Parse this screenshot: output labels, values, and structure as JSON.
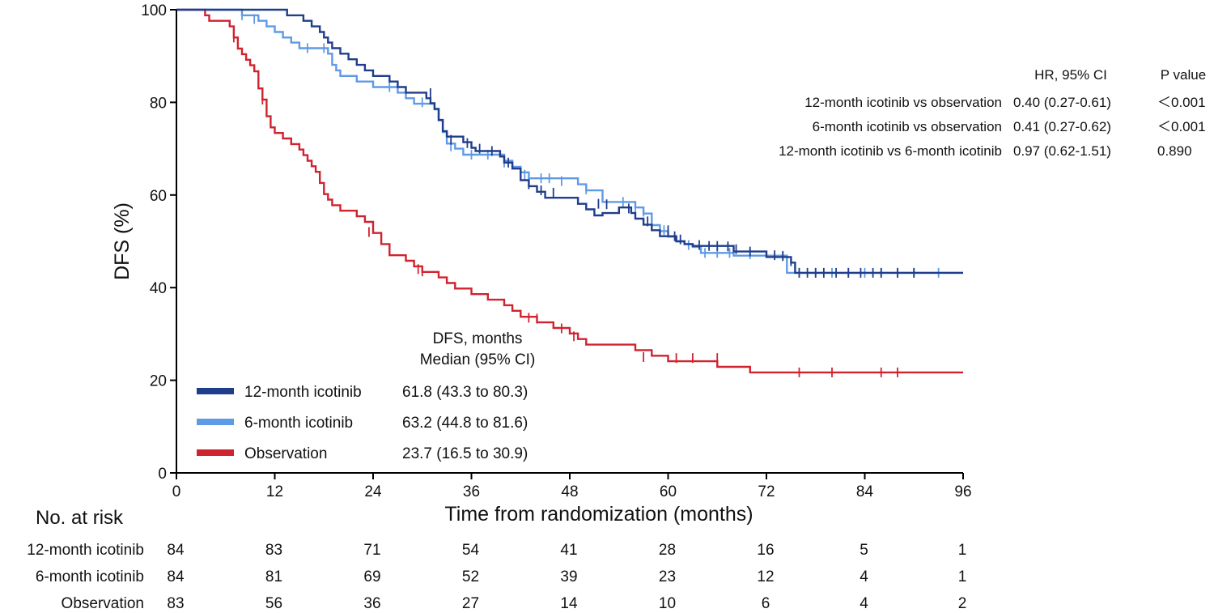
{
  "chart_data": {
    "type": "line",
    "subtype": "kaplan-meier",
    "title": "",
    "xlabel": "Time from randomization (months)",
    "ylabel": "DFS (%)",
    "xlim": [
      0,
      96
    ],
    "ylim": [
      0,
      100
    ],
    "xticks": [
      0,
      12,
      24,
      36,
      48,
      60,
      72,
      84,
      96
    ],
    "yticks": [
      0,
      20,
      40,
      60,
      80,
      100
    ],
    "grid": false,
    "legend_position": "lower-left",
    "series": [
      {
        "name": "12-month icotinib",
        "color": "#1f3d8a",
        "median_ci": "61.8 (43.3 to 80.3)",
        "steps": [
          [
            0,
            100
          ],
          [
            3,
            100
          ],
          [
            6,
            100
          ],
          [
            13,
            100
          ],
          [
            13.5,
            98.8
          ],
          [
            15,
            98.8
          ],
          [
            15.5,
            97.6
          ],
          [
            16.5,
            96.4
          ],
          [
            17.5,
            95.2
          ],
          [
            18,
            94
          ],
          [
            18.5,
            92.9
          ],
          [
            19,
            91.7
          ],
          [
            20,
            90.5
          ],
          [
            21,
            89.3
          ],
          [
            22,
            88.1
          ],
          [
            23,
            86.9
          ],
          [
            24,
            85.7
          ],
          [
            26,
            84.5
          ],
          [
            27,
            83.3
          ],
          [
            28,
            82.1
          ],
          [
            30,
            82.1
          ],
          [
            30.5,
            80.9
          ],
          [
            31,
            79.8
          ],
          [
            31.5,
            78.6
          ],
          [
            32,
            76.2
          ],
          [
            32.5,
            73.8
          ],
          [
            33,
            72.6
          ],
          [
            35,
            71.4
          ],
          [
            36,
            70.2
          ],
          [
            36.5,
            69.5
          ],
          [
            38,
            69.5
          ],
          [
            39.5,
            68.3
          ],
          [
            40,
            67
          ],
          [
            41,
            65.7
          ],
          [
            42,
            63.2
          ],
          [
            43,
            61.9
          ],
          [
            44,
            60.7
          ],
          [
            45,
            59.4
          ],
          [
            48,
            59.4
          ],
          [
            49,
            58.1
          ],
          [
            50,
            56.9
          ],
          [
            51,
            55.6
          ],
          [
            52,
            56.1
          ],
          [
            54,
            57.3
          ],
          [
            55,
            57.3
          ],
          [
            55.5,
            56.1
          ],
          [
            56,
            54.9
          ],
          [
            57,
            53.6
          ],
          [
            58,
            52.4
          ],
          [
            59,
            51.1
          ],
          [
            61,
            50
          ],
          [
            62,
            49.4
          ],
          [
            63,
            49
          ],
          [
            67,
            49
          ],
          [
            68,
            47.8
          ],
          [
            71,
            47.8
          ],
          [
            72,
            46.6
          ],
          [
            75,
            45.4
          ],
          [
            75.5,
            43.2
          ],
          [
            96,
            43.2
          ]
        ],
        "censored": [
          [
            31,
            82
          ],
          [
            33.5,
            71.9
          ],
          [
            35.5,
            71.2
          ],
          [
            37,
            70
          ],
          [
            38.5,
            69.5
          ],
          [
            40.5,
            67
          ],
          [
            43,
            62.3
          ],
          [
            44.5,
            61
          ],
          [
            46,
            60.5
          ],
          [
            51.5,
            58.1
          ],
          [
            52.5,
            58
          ],
          [
            55.2,
            57.1
          ],
          [
            57.5,
            54.3
          ],
          [
            60,
            52.4
          ],
          [
            60.8,
            51.1
          ],
          [
            61.5,
            50.4
          ],
          [
            63.8,
            49.2
          ],
          [
            65,
            49
          ],
          [
            66,
            49
          ],
          [
            67.3,
            48.9
          ],
          [
            68.3,
            48.3
          ],
          [
            70,
            47.8
          ],
          [
            73,
            47
          ],
          [
            74,
            46.8
          ],
          [
            75,
            45.7
          ],
          [
            76,
            43.2
          ],
          [
            77,
            43.2
          ],
          [
            78,
            43.2
          ],
          [
            79,
            43.2
          ],
          [
            80.5,
            43.2
          ],
          [
            82,
            43.2
          ],
          [
            83.5,
            43.2
          ],
          [
            85,
            43.2
          ],
          [
            86,
            43.2
          ],
          [
            88,
            43.2
          ],
          [
            90,
            43.2
          ]
        ]
      },
      {
        "name": "6-month icotinib",
        "color": "#5f9ae6",
        "median_ci": "63.2 (44.8 to 81.6)",
        "steps": [
          [
            0,
            100
          ],
          [
            7,
            100
          ],
          [
            8,
            98.8
          ],
          [
            9,
            98.8
          ],
          [
            10,
            97.6
          ],
          [
            11,
            96.4
          ],
          [
            12,
            95.2
          ],
          [
            13,
            94
          ],
          [
            14,
            92.9
          ],
          [
            15,
            91.7
          ],
          [
            18,
            91.7
          ],
          [
            18.5,
            90.5
          ],
          [
            19,
            88.1
          ],
          [
            19.5,
            86.9
          ],
          [
            20,
            85.7
          ],
          [
            22,
            84.5
          ],
          [
            24,
            83.3
          ],
          [
            27,
            82.1
          ],
          [
            28,
            80.9
          ],
          [
            29,
            79.7
          ],
          [
            31,
            79.7
          ],
          [
            31.5,
            78.5
          ],
          [
            32,
            76.1
          ],
          [
            32.5,
            73.6
          ],
          [
            33,
            71.1
          ],
          [
            34,
            70
          ],
          [
            35,
            68.7
          ],
          [
            38,
            68.7
          ],
          [
            40,
            67.4
          ],
          [
            41,
            66.1
          ],
          [
            42,
            64.9
          ],
          [
            43,
            63.6
          ],
          [
            48,
            63.6
          ],
          [
            49,
            62.3
          ],
          [
            50,
            61
          ],
          [
            52,
            58.5
          ],
          [
            55,
            58.5
          ],
          [
            56,
            57.3
          ],
          [
            57,
            56
          ],
          [
            58,
            53.5
          ],
          [
            59,
            52.2
          ],
          [
            60,
            51
          ],
          [
            61,
            50
          ],
          [
            62,
            49.4
          ],
          [
            63,
            48.8
          ],
          [
            64,
            47.5
          ],
          [
            67,
            47.5
          ],
          [
            68,
            46.9
          ],
          [
            74,
            46.9
          ],
          [
            74.5,
            43.2
          ],
          [
            96,
            43.2
          ]
        ],
        "censored": [
          [
            8,
            98.8
          ],
          [
            9.5,
            98
          ],
          [
            16,
            91.7
          ],
          [
            18,
            91.7
          ],
          [
            26,
            83.3
          ],
          [
            30,
            80
          ],
          [
            33.5,
            70.5
          ],
          [
            36,
            68.7
          ],
          [
            38,
            68.7
          ],
          [
            40,
            67
          ],
          [
            42.5,
            64.4
          ],
          [
            44.5,
            63.6
          ],
          [
            45.5,
            63.6
          ],
          [
            47,
            63
          ],
          [
            50,
            61.2
          ],
          [
            54.5,
            58.5
          ],
          [
            56,
            57.2
          ],
          [
            57,
            56.4
          ],
          [
            59.5,
            52.4
          ],
          [
            62.5,
            49.2
          ],
          [
            64.5,
            47.5
          ],
          [
            66,
            47.5
          ],
          [
            67.5,
            47.5
          ],
          [
            70,
            47.2
          ],
          [
            74,
            46.9
          ],
          [
            76,
            43.2
          ],
          [
            78,
            43.2
          ],
          [
            80,
            43.2
          ],
          [
            82,
            43.2
          ],
          [
            84,
            43.2
          ],
          [
            86,
            43.2
          ],
          [
            88,
            43.2
          ],
          [
            90,
            43.2
          ],
          [
            93,
            43.2
          ]
        ]
      },
      {
        "name": "Observation",
        "color": "#d0222f",
        "median_ci": "23.7 (16.5 to 30.9)",
        "steps": [
          [
            0,
            100
          ],
          [
            3,
            100
          ],
          [
            3.5,
            98.8
          ],
          [
            4,
            97.6
          ],
          [
            6,
            97.6
          ],
          [
            6.5,
            96.4
          ],
          [
            7,
            94
          ],
          [
            7.5,
            91.6
          ],
          [
            8,
            90.4
          ],
          [
            8.5,
            89.2
          ],
          [
            9,
            88
          ],
          [
            9.5,
            86.7
          ],
          [
            10,
            83
          ],
          [
            10.5,
            80.6
          ],
          [
            11,
            77
          ],
          [
            11.5,
            74.6
          ],
          [
            12,
            73.4
          ],
          [
            13,
            72.2
          ],
          [
            14,
            71
          ],
          [
            15,
            69.8
          ],
          [
            15.5,
            68.6
          ],
          [
            16,
            67.4
          ],
          [
            16.5,
            66.2
          ],
          [
            17,
            65
          ],
          [
            17.5,
            62.6
          ],
          [
            18,
            60.2
          ],
          [
            18.5,
            59
          ],
          [
            19,
            57.8
          ],
          [
            20,
            56.6
          ],
          [
            22,
            55.4
          ],
          [
            23,
            54.2
          ],
          [
            24,
            51.8
          ],
          [
            25,
            49.4
          ],
          [
            26,
            47
          ],
          [
            28,
            45.8
          ],
          [
            29,
            44.6
          ],
          [
            30,
            43.4
          ],
          [
            32,
            42.2
          ],
          [
            33,
            41
          ],
          [
            34,
            39.8
          ],
          [
            36,
            38.6
          ],
          [
            38,
            37.4
          ],
          [
            40,
            36.2
          ],
          [
            41,
            35
          ],
          [
            42,
            33.7
          ],
          [
            44,
            32.5
          ],
          [
            46,
            31.3
          ],
          [
            48,
            30.1
          ],
          [
            49,
            28.9
          ],
          [
            50,
            27.7
          ],
          [
            55,
            27.7
          ],
          [
            56,
            26.5
          ],
          [
            58,
            25.3
          ],
          [
            60,
            24.1
          ],
          [
            65,
            24.1
          ],
          [
            66,
            22.9
          ],
          [
            70,
            21.7
          ],
          [
            96,
            21.7
          ]
        ],
        "censored": [
          [
            7,
            94
          ],
          [
            10.5,
            80.6
          ],
          [
            23.5,
            52
          ],
          [
            29.5,
            44
          ],
          [
            30,
            43.5
          ],
          [
            43,
            33.5
          ],
          [
            44,
            33.3
          ],
          [
            47,
            31.2
          ],
          [
            48.5,
            29.5
          ],
          [
            57,
            25
          ],
          [
            61,
            24.8
          ],
          [
            63,
            24.8
          ],
          [
            66,
            24.8
          ],
          [
            76,
            21.7
          ],
          [
            80,
            21.7
          ],
          [
            86,
            21.7
          ],
          [
            88,
            21.7
          ]
        ]
      }
    ],
    "legend_header": [
      "DFS, months",
      "Median (95% CI)"
    ],
    "hr_table": {
      "header_hr": "HR, 95% CI",
      "header_p": "P value",
      "rows": [
        {
          "label": "12-month icotinib vs observation",
          "hr": "0.40 (0.27-0.61)",
          "p": "＜0.001"
        },
        {
          "label": "6-month icotinib vs observation",
          "hr": "0.41 (0.27-0.62)",
          "p": "＜0.001"
        },
        {
          "label": "12-month icotinib vs 6-month icotinib",
          "hr": "0.97 (0.62-1.51)",
          "p": "0.890"
        }
      ]
    },
    "risk_table": {
      "title": "No. at risk",
      "times": [
        0,
        12,
        24,
        36,
        48,
        60,
        72,
        84,
        96
      ],
      "rows": [
        {
          "name": "12-month icotinib",
          "counts": [
            84,
            83,
            71,
            54,
            41,
            28,
            16,
            5,
            1
          ]
        },
        {
          "name": "6-month icotinib",
          "counts": [
            84,
            81,
            69,
            52,
            39,
            23,
            12,
            4,
            1
          ]
        },
        {
          "name": "Observation",
          "counts": [
            83,
            56,
            36,
            27,
            14,
            10,
            6,
            4,
            2
          ]
        }
      ]
    }
  }
}
